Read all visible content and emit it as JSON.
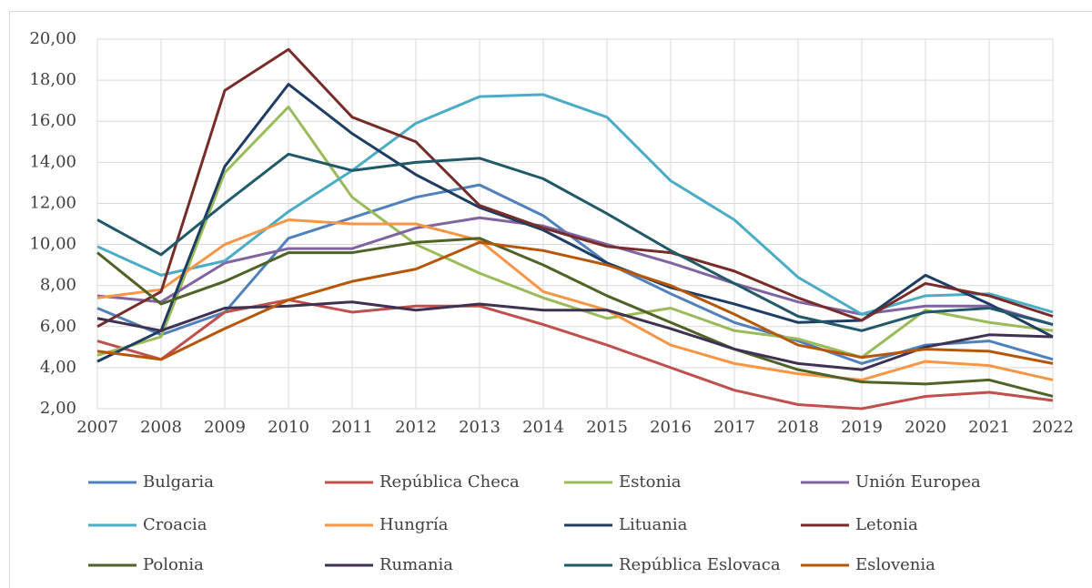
{
  "chart_data": {
    "type": "line",
    "categories": [
      "2007",
      "2008",
      "2009",
      "2010",
      "2011",
      "2012",
      "2013",
      "2014",
      "2015",
      "2016",
      "2017",
      "2018",
      "2019",
      "2020",
      "2021",
      "2022"
    ],
    "ylim": [
      2,
      20
    ],
    "yticks": [
      {
        "value": 2,
        "label": "2,00"
      },
      {
        "value": 4,
        "label": "4,00"
      },
      {
        "value": 6,
        "label": "6,00"
      },
      {
        "value": 8,
        "label": "8,00"
      },
      {
        "value": 10,
        "label": "10,00"
      },
      {
        "value": 12,
        "label": "12,00"
      },
      {
        "value": 14,
        "label": "14,00"
      },
      {
        "value": 16,
        "label": "16,00"
      },
      {
        "value": 18,
        "label": "18,00"
      },
      {
        "value": 20,
        "label": "20,00"
      }
    ],
    "grid": true,
    "legend": "bottom",
    "series": [
      {
        "name": "Bulgaria",
        "color": "#4f81bd",
        "values": [
          6.9,
          5.6,
          6.7,
          10.3,
          11.3,
          12.3,
          12.9,
          11.4,
          9.1,
          7.6,
          6.2,
          5.3,
          4.2,
          5.1,
          5.3,
          4.4
        ]
      },
      {
        "name": "República Checa",
        "color": "#c0504d",
        "values": [
          5.3,
          4.4,
          6.7,
          7.3,
          6.7,
          7.0,
          7.0,
          6.1,
          5.1,
          4.0,
          2.9,
          2.2,
          2.0,
          2.6,
          2.8,
          2.4
        ]
      },
      {
        "name": "Estonia",
        "color": "#9bbb59",
        "values": [
          4.6,
          5.5,
          13.5,
          16.7,
          12.3,
          10.0,
          8.6,
          7.4,
          6.4,
          6.9,
          5.8,
          5.4,
          4.5,
          6.8,
          6.2,
          5.8
        ]
      },
      {
        "name": "Unión Europea",
        "color": "#8064a2",
        "values": [
          7.5,
          7.2,
          9.1,
          9.8,
          9.8,
          10.8,
          11.3,
          10.9,
          10.0,
          9.1,
          8.1,
          7.2,
          6.6,
          7.0,
          7.0,
          6.1
        ]
      },
      {
        "name": "Croacia",
        "color": "#4bacc6",
        "values": [
          9.9,
          8.5,
          9.2,
          11.6,
          13.6,
          15.9,
          17.2,
          17.3,
          16.2,
          13.1,
          11.2,
          8.4,
          6.6,
          7.5,
          7.6,
          6.7
        ]
      },
      {
        "name": "Hungría",
        "color": "#f79646",
        "values": [
          7.4,
          7.8,
          10.0,
          11.2,
          11.0,
          11.0,
          10.2,
          7.7,
          6.8,
          5.1,
          4.2,
          3.7,
          3.4,
          4.3,
          4.1,
          3.4
        ]
      },
      {
        "name": "Lituania",
        "color": "#1f3d63",
        "values": [
          4.3,
          5.8,
          13.8,
          17.8,
          15.4,
          13.4,
          11.8,
          10.7,
          9.1,
          7.9,
          7.1,
          6.2,
          6.3,
          8.5,
          7.1,
          5.5
        ]
      },
      {
        "name": "Letonia",
        "color": "#772c2a",
        "values": [
          6.0,
          7.7,
          17.5,
          19.5,
          16.2,
          15.0,
          11.9,
          10.8,
          9.9,
          9.6,
          8.7,
          7.4,
          6.3,
          8.1,
          7.5,
          6.5
        ]
      },
      {
        "name": "Polonia",
        "color": "#4f6228",
        "values": [
          9.6,
          7.1,
          8.2,
          9.6,
          9.6,
          10.1,
          10.3,
          9.0,
          7.5,
          6.2,
          4.9,
          3.9,
          3.3,
          3.2,
          3.4,
          2.6
        ]
      },
      {
        "name": "Rumania",
        "color": "#3f3151",
        "values": [
          6.4,
          5.8,
          6.9,
          7.0,
          7.2,
          6.8,
          7.1,
          6.8,
          6.8,
          5.9,
          4.9,
          4.2,
          3.9,
          5.0,
          5.6,
          5.5
        ]
      },
      {
        "name": "República Eslovaca",
        "color": "#215968",
        "values": [
          11.2,
          9.5,
          12.0,
          14.4,
          13.6,
          14.0,
          14.2,
          13.2,
          11.5,
          9.7,
          8.1,
          6.5,
          5.8,
          6.7,
          6.9,
          6.1
        ]
      },
      {
        "name": "Eslovenia",
        "color": "#b65708",
        "values": [
          4.8,
          4.4,
          5.9,
          7.3,
          8.2,
          8.8,
          10.1,
          9.7,
          9.0,
          8.0,
          6.6,
          5.1,
          4.5,
          4.9,
          4.8,
          4.2
        ]
      }
    ]
  }
}
